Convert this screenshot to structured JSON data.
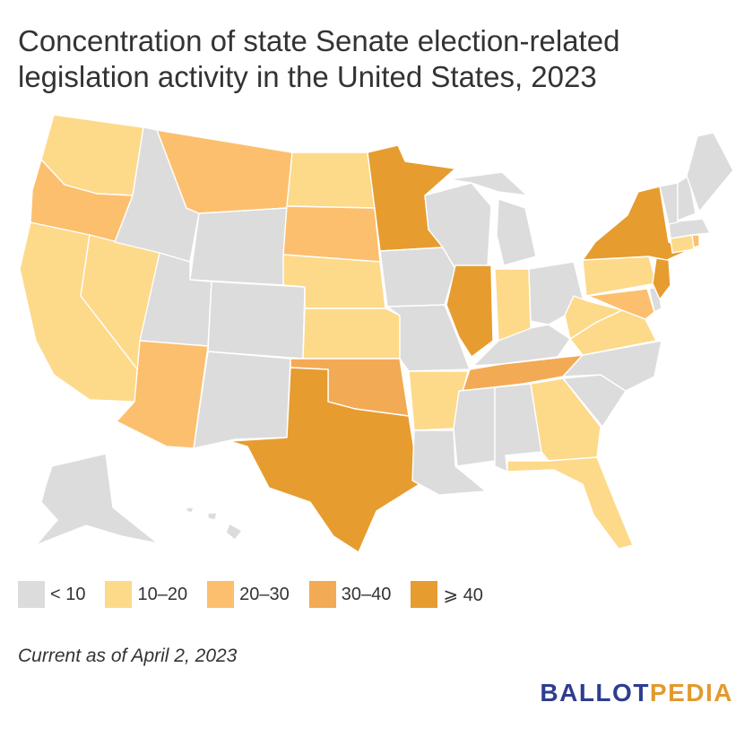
{
  "title": "Concentration of state Senate election-related legislation activity in the United States, 2023",
  "footnote": "Current as of April 2, 2023",
  "logo": {
    "part1": "BALLOT",
    "part2": "PEDIA",
    "color1": "#2e3d8f",
    "color2": "#e29a2e"
  },
  "legend": [
    {
      "key": "lt10",
      "label": "< 10",
      "color": "#dcdcdc"
    },
    {
      "key": "10-20",
      "label": "10–20",
      "color": "#fdd98a"
    },
    {
      "key": "20-30",
      "label": "20–30",
      "color": "#fcbf6e"
    },
    {
      "key": "30-40",
      "label": "30–40",
      "color": "#f3aa55"
    },
    {
      "key": "gte40",
      "label": "⩾ 40",
      "color": "#e79c2f"
    }
  ],
  "chart_data": {
    "type": "choropleth",
    "region": "United States",
    "bins": [
      "< 10",
      "10–20",
      "20–30",
      "30–40",
      "⩾ 40"
    ],
    "states": {
      "WA": "10-20",
      "OR": "20-30",
      "CA": "10-20",
      "NV": "10-20",
      "AZ": "20-30",
      "ID": "lt10",
      "MT": "20-30",
      "WY": "lt10",
      "UT": "lt10",
      "CO": "lt10",
      "NM": "lt10",
      "ND": "10-20",
      "SD": "20-30",
      "NE": "10-20",
      "KS": "10-20",
      "OK": "30-40",
      "TX": "gte40",
      "MN": "gte40",
      "IA": "lt10",
      "MO": "lt10",
      "AR": "10-20",
      "LA": "lt10",
      "WI": "lt10",
      "IL": "gte40",
      "MI": "lt10",
      "IN": "10-20",
      "OH": "lt10",
      "KY": "lt10",
      "TN": "30-40",
      "MS": "lt10",
      "AL": "lt10",
      "GA": "10-20",
      "FL": "10-20",
      "SC": "lt10",
      "NC": "lt10",
      "VA": "10-20",
      "WV": "10-20",
      "MD": "20-30",
      "DE": "lt10",
      "PA": "10-20",
      "NJ": "gte40",
      "NY": "gte40",
      "CT": "10-20",
      "RI": "20-30",
      "MA": "lt10",
      "VT": "lt10",
      "NH": "lt10",
      "ME": "lt10",
      "AK": "lt10",
      "HI": "lt10"
    }
  }
}
